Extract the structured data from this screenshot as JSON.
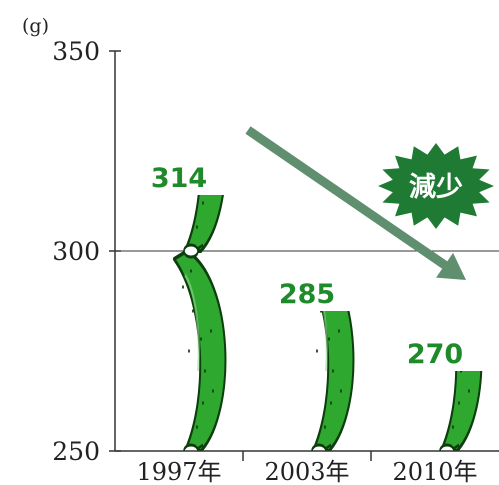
{
  "chart_data": {
    "type": "bar",
    "unit_label": "(g)",
    "categories": [
      "1997年",
      "2003年",
      "2010年"
    ],
    "values": [
      314,
      285,
      270
    ],
    "data_labels": [
      "314",
      "285",
      "270"
    ],
    "y_ticks": [
      250,
      300,
      350
    ],
    "y_tick_labels": [
      "250",
      "300",
      "350"
    ],
    "ylim": [
      250,
      350
    ],
    "gridlines_at": [
      300
    ],
    "annotation": "減少",
    "colors": {
      "cucumber_fill": "#2fa82f",
      "cucumber_stroke": "#0e3d0e",
      "value_label": "#1e8a2a",
      "badge_fill": "#1f7a33",
      "arrow": "#5f8f6f",
      "axis": "#333333"
    }
  }
}
